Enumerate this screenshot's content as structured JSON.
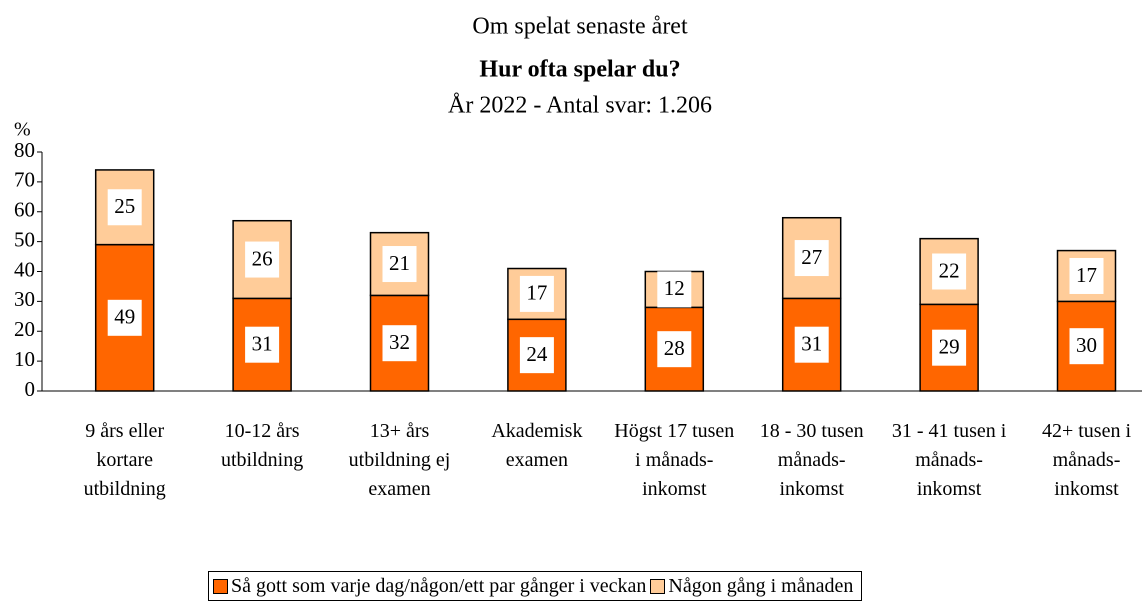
{
  "chart_data": {
    "type": "stacked_bar",
    "title": "Om spelat senaste året",
    "subtitle": "Hur ofta spelar du?",
    "subtitle2": "År 2022 - Antal svar: 1.206",
    "ylabel": "%",
    "categories": [
      "9 års eller kortare utbildning",
      "10-12 års utbildning",
      "13+ års utbildning ej examen",
      "Akademisk examen",
      "Högst 17 tusen i månads-inkomst",
      "18 - 30 tusen månads-inkomst",
      "31 - 41 tusen i månads-inkomst",
      "42+ tusen i månads-inkomst"
    ],
    "series": [
      {
        "name": "Så gott som varje dag/någon/ett par gånger i veckan",
        "color": "#ff6600",
        "values": [
          49,
          31,
          32,
          24,
          28,
          31,
          29,
          30
        ]
      },
      {
        "name": "Någon gång i månaden",
        "color": "#ffcc99",
        "values": [
          25,
          26,
          21,
          17,
          12,
          27,
          22,
          17
        ]
      }
    ],
    "ylim": [
      0,
      80
    ],
    "yticks": [
      0,
      10,
      20,
      30,
      40,
      50,
      60,
      70,
      80
    ]
  }
}
